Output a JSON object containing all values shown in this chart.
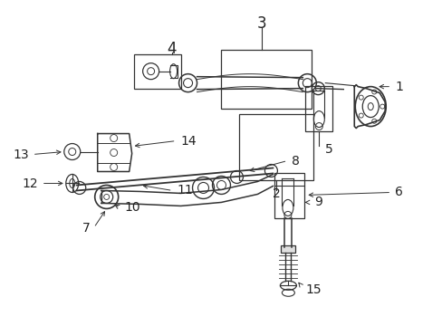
{
  "bg_color": "#ffffff",
  "line_color": "#333333",
  "label_color": "#222222",
  "figsize": [
    4.89,
    3.6
  ],
  "dpi": 100,
  "xlim": [
    0.3,
    5.0
  ],
  "ylim": [
    0.1,
    3.65
  ]
}
